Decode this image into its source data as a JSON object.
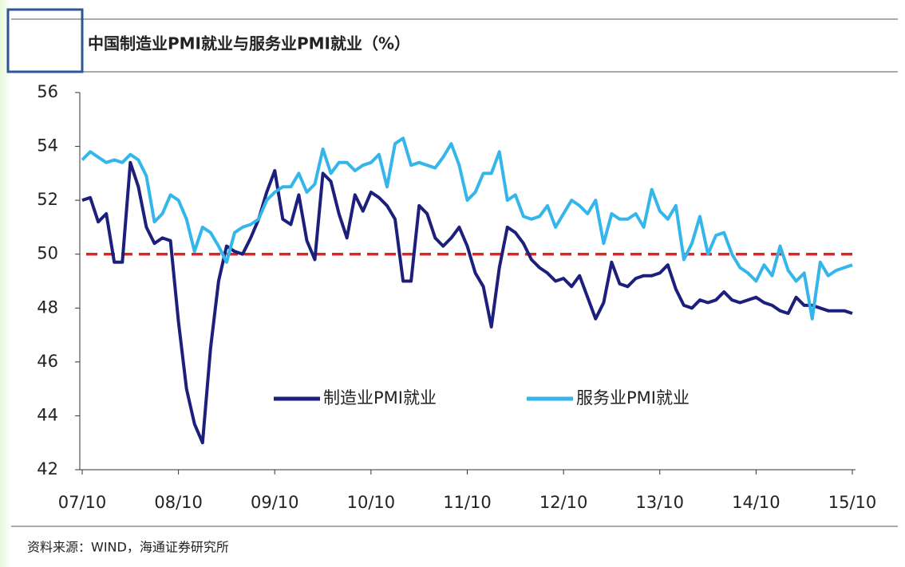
{
  "chart_data": {
    "type": "line",
    "title": "中国制造业PMI就业与服务业PMI就业（%）",
    "source": "资料来源：WIND，海通证券研究所",
    "categories": [
      "07/10",
      null,
      null,
      null,
      null,
      null,
      null,
      null,
      null,
      null,
      null,
      null,
      "08/10",
      null,
      null,
      null,
      null,
      null,
      null,
      null,
      null,
      null,
      null,
      null,
      "09/10",
      null,
      null,
      null,
      null,
      null,
      null,
      null,
      null,
      null,
      null,
      null,
      "10/10",
      null,
      null,
      null,
      null,
      null,
      null,
      null,
      null,
      null,
      null,
      null,
      "11/10",
      null,
      null,
      null,
      null,
      null,
      null,
      null,
      null,
      null,
      null,
      null,
      "12/10",
      null,
      null,
      null,
      null,
      null,
      null,
      null,
      null,
      null,
      null,
      null,
      "13/10",
      null,
      null,
      null,
      null,
      null,
      null,
      null,
      null,
      null,
      null,
      null,
      "14/10",
      null,
      null,
      null,
      null,
      null,
      null,
      null,
      null,
      null,
      null,
      null,
      "15/10"
    ],
    "series": [
      {
        "name": "制造业PMI就业",
        "color": "#1c1f7c",
        "values": [
          52.0,
          52.1,
          51.2,
          51.5,
          49.7,
          49.7,
          53.4,
          52.5,
          51.0,
          50.4,
          50.6,
          50.5,
          47.5,
          45.0,
          43.7,
          43.0,
          46.5,
          49.0,
          50.3,
          50.1,
          50.0,
          50.6,
          51.3,
          52.3,
          53.1,
          51.3,
          51.1,
          52.2,
          50.5,
          49.8,
          53.0,
          52.7,
          51.5,
          50.6,
          52.2,
          51.6,
          52.3,
          52.1,
          51.8,
          51.3,
          49.0,
          49.0,
          51.8,
          51.5,
          50.6,
          50.3,
          50.6,
          51.0,
          50.3,
          49.3,
          48.8,
          47.3,
          49.5,
          51.0,
          50.8,
          50.4,
          49.8,
          49.5,
          49.3,
          49.0,
          49.1,
          48.8,
          49.2,
          48.4,
          47.6,
          48.2,
          49.7,
          48.9,
          48.8,
          49.1,
          49.2,
          49.2,
          49.3,
          49.6,
          48.7,
          48.1,
          48.0,
          48.3,
          48.2,
          48.3,
          48.6,
          48.3,
          48.2,
          48.3,
          48.4,
          48.2,
          48.1,
          47.9,
          47.8,
          48.4,
          48.1,
          48.1,
          48.0,
          47.9,
          47.9,
          47.9,
          47.8
        ]
      },
      {
        "name": "服务业PMI就业",
        "color": "#35b6ea",
        "values": [
          53.5,
          53.8,
          53.6,
          53.4,
          53.5,
          53.4,
          53.7,
          53.5,
          52.9,
          51.2,
          51.5,
          52.2,
          52.0,
          51.3,
          50.1,
          51.0,
          50.8,
          50.3,
          49.7,
          50.8,
          51.0,
          51.1,
          51.3,
          52.0,
          52.3,
          52.5,
          52.5,
          53.0,
          52.3,
          52.6,
          53.9,
          53.0,
          53.4,
          53.4,
          53.1,
          53.3,
          53.4,
          53.7,
          52.5,
          54.1,
          54.3,
          53.3,
          53.4,
          53.3,
          53.2,
          53.6,
          54.1,
          53.3,
          52.0,
          52.3,
          53.0,
          53.0,
          53.8,
          52.0,
          52.2,
          51.4,
          51.3,
          51.4,
          51.8,
          51.0,
          51.5,
          52.0,
          51.8,
          51.5,
          52.0,
          50.4,
          51.5,
          51.3,
          51.3,
          51.5,
          51.0,
          52.4,
          51.6,
          51.3,
          51.8,
          49.8,
          50.4,
          51.4,
          50.0,
          50.7,
          50.8,
          50.0,
          49.5,
          49.3,
          49.0,
          49.6,
          49.2,
          50.3,
          49.4,
          49.0,
          49.3,
          47.6,
          49.7,
          49.2,
          49.4,
          49.5,
          49.6
        ]
      }
    ],
    "reference_line": {
      "value": 50,
      "color": "#e02424"
    },
    "ylim": [
      42,
      56
    ],
    "yticks": [
      42,
      44,
      46,
      48,
      50,
      52,
      54,
      56
    ]
  }
}
